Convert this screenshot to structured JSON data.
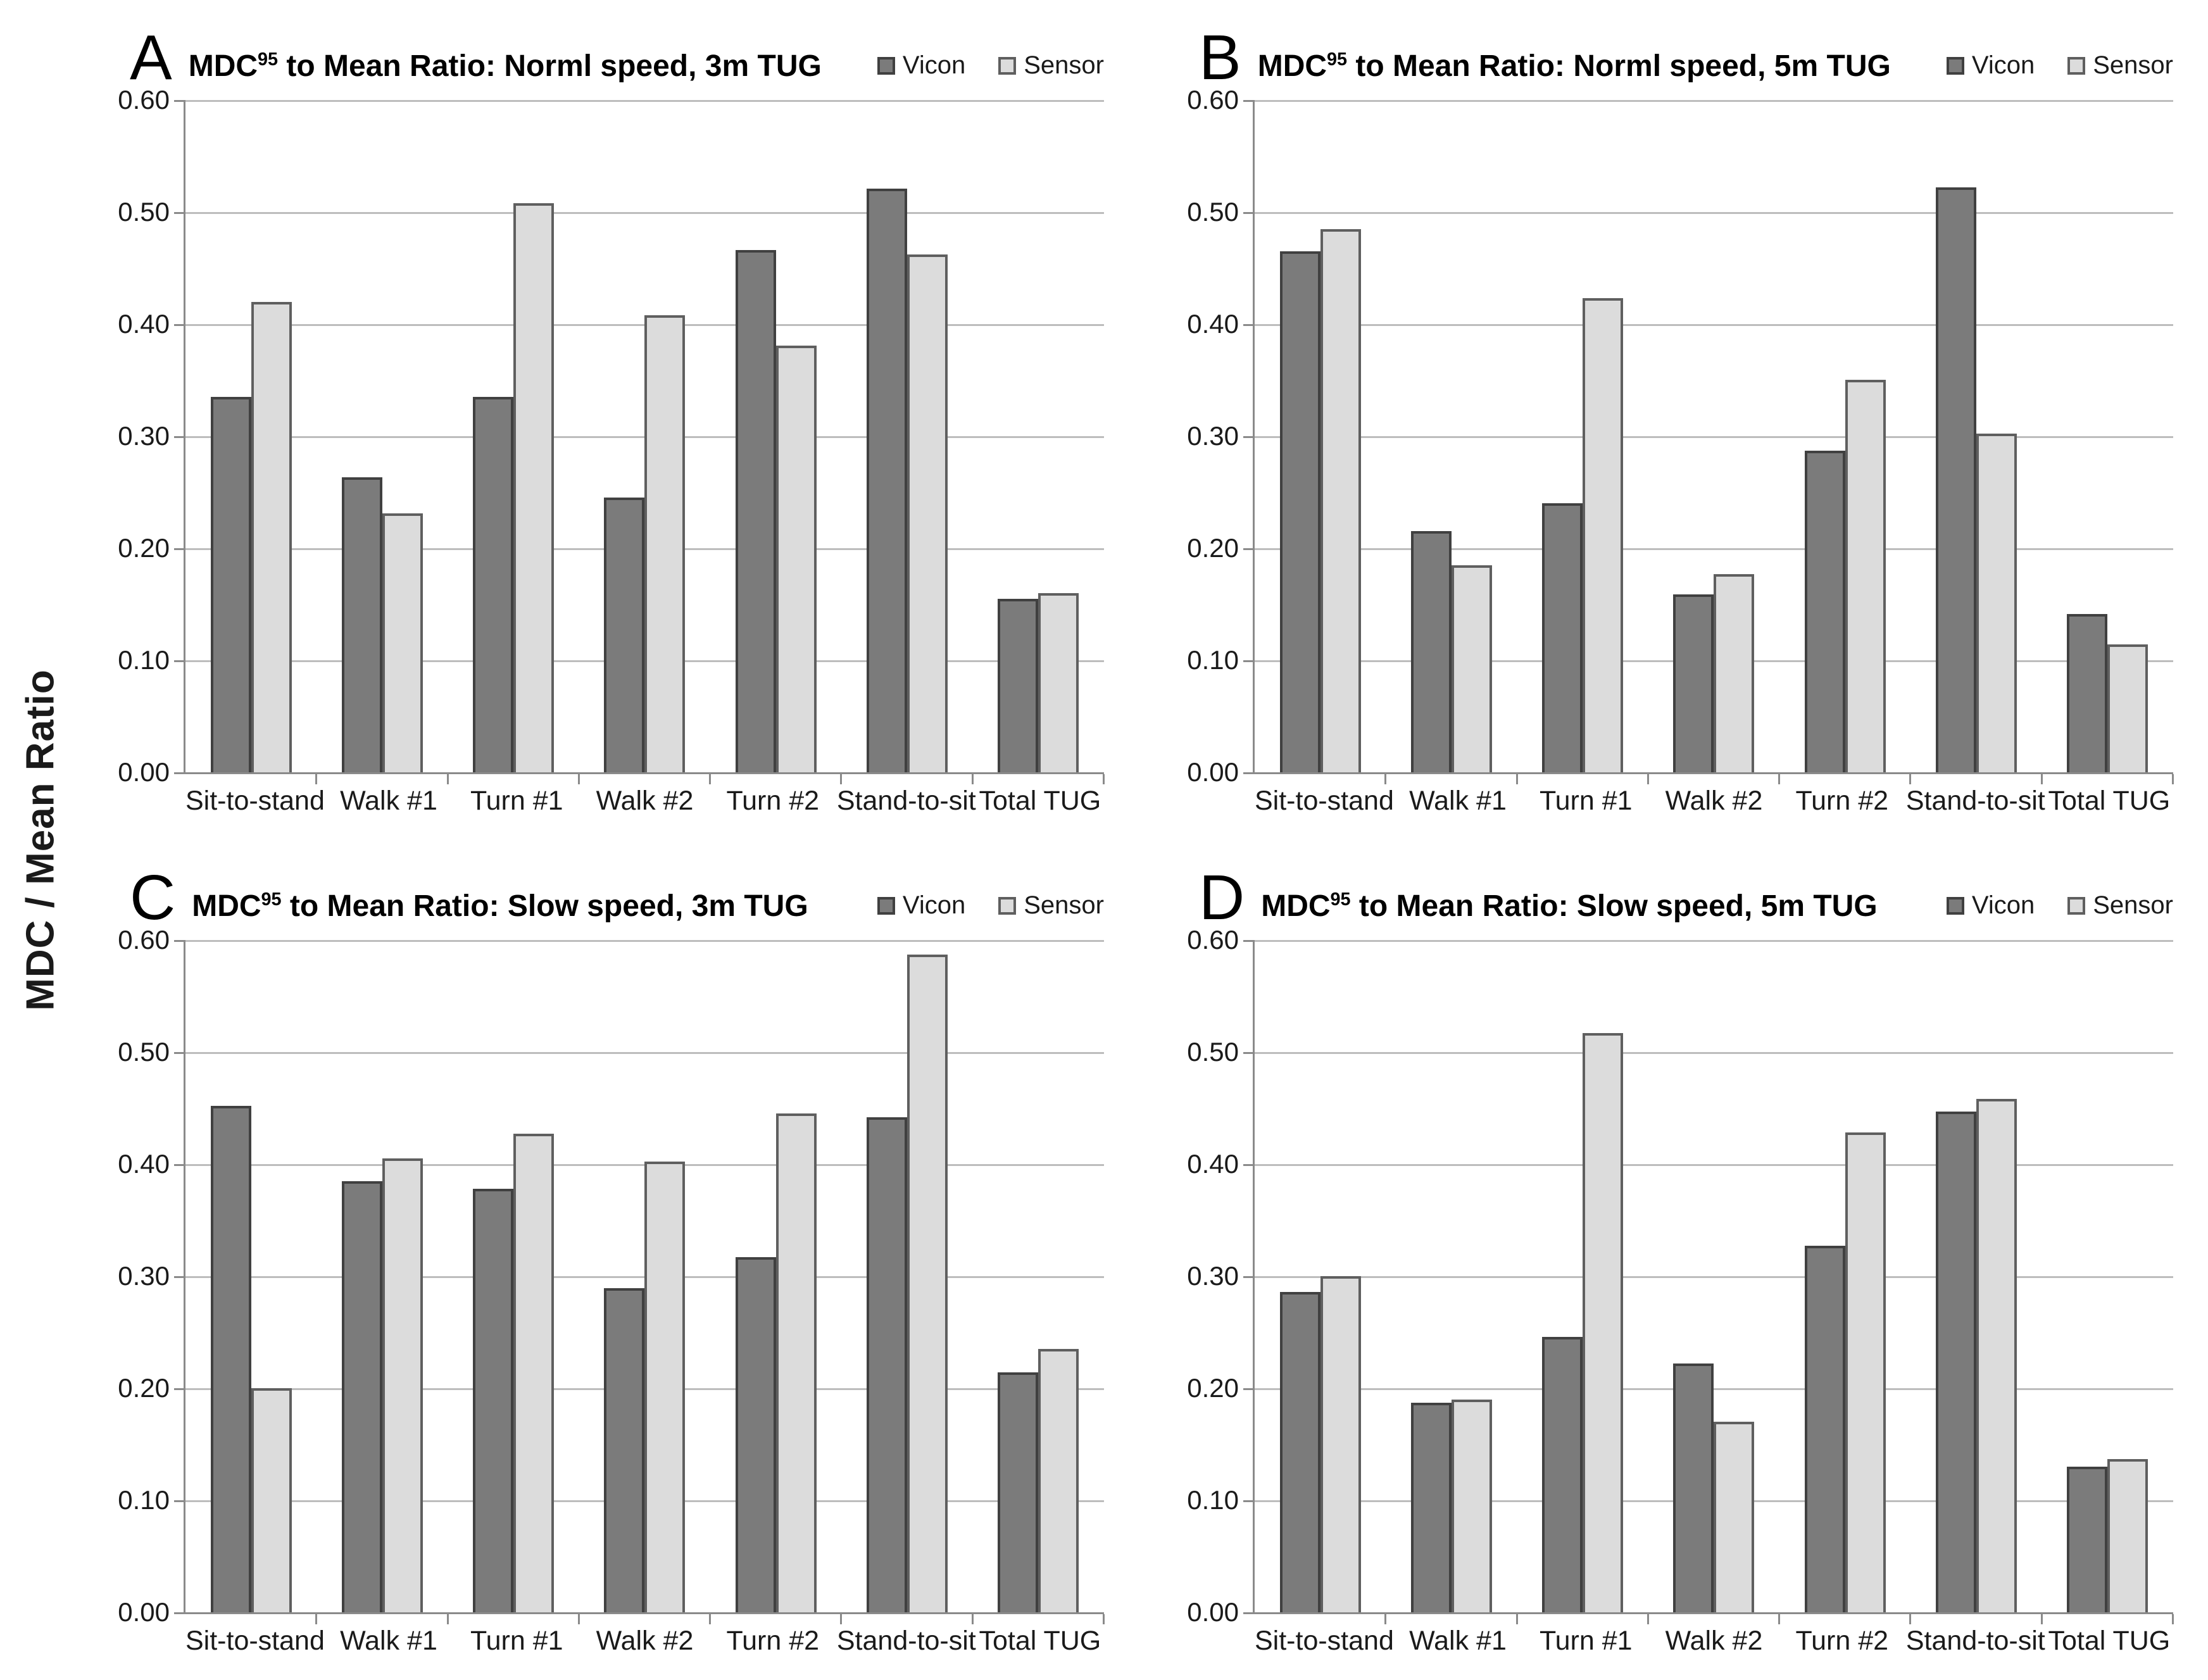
{
  "figure": {
    "ylabel": "MDC / Mean Ratio",
    "yticks": [
      "0.60",
      "0.50",
      "0.40",
      "0.30",
      "0.20",
      "0.10",
      "0.00"
    ],
    "legend": {
      "vicon_label": "Vicon",
      "sensor_label": "Sensor"
    },
    "colors": {
      "vicon_fill": "#7b7b7b",
      "vicon_border": "#404040",
      "sensor_fill": "#dcdcdc",
      "sensor_border": "#5f5f5f",
      "gridline": "#bdbdbd",
      "axis": "#8a8a8a"
    }
  },
  "chart_data": [
    {
      "type": "bar",
      "panel_label": "A",
      "title_base": "MDC",
      "title_sup": "95",
      "title_rest": " to Mean Ratio: Norml speed, 3m TUG",
      "title_full": "MDC95 to Mean Ratio: Norml speed, 3m TUG",
      "categories": [
        "Sit-to-stand",
        "Walk #1",
        "Turn #1",
        "Walk #2",
        "Turn #2",
        "Stand-to-sit",
        "Total TUG"
      ],
      "series": [
        {
          "name": "Vicon",
          "values": [
            0.335,
            0.263,
            0.335,
            0.245,
            0.466,
            0.521,
            0.155
          ]
        },
        {
          "name": "Sensor",
          "values": [
            0.42,
            0.231,
            0.508,
            0.408,
            0.381,
            0.462,
            0.16
          ]
        }
      ],
      "ylim": [
        0,
        0.6
      ],
      "ytick_step": 0.1,
      "grid": true,
      "legend_position": "top-right"
    },
    {
      "type": "bar",
      "panel_label": "B",
      "title_base": "MDC",
      "title_sup": "95",
      "title_rest": " to Mean Ratio: Norml speed, 5m TUG",
      "title_full": "MDC95 to Mean Ratio: Norml speed, 5m TUG",
      "categories": [
        "Sit-to-stand",
        "Walk #1",
        "Turn #1",
        "Walk #2",
        "Turn #2",
        "Stand-to-sit",
        "Total TUG"
      ],
      "series": [
        {
          "name": "Vicon",
          "values": [
            0.465,
            0.215,
            0.24,
            0.159,
            0.287,
            0.522,
            0.141
          ]
        },
        {
          "name": "Sensor",
          "values": [
            0.485,
            0.185,
            0.423,
            0.177,
            0.35,
            0.302,
            0.114
          ]
        }
      ],
      "ylim": [
        0,
        0.6
      ],
      "ytick_step": 0.1,
      "grid": true,
      "legend_position": "top-right"
    },
    {
      "type": "bar",
      "panel_label": "C",
      "title_base": "MDC",
      "title_sup": "95",
      "title_rest": " to Mean Ratio: Slow speed, 3m TUG",
      "title_full": "MDC95 to Mean Ratio: Slow speed, 3m TUG",
      "categories": [
        "Sit-to-stand",
        "Walk #1",
        "Turn #1",
        "Walk #2",
        "Turn #2",
        "Stand-to-sit",
        "Total TUG"
      ],
      "series": [
        {
          "name": "Vicon",
          "values": [
            0.452,
            0.385,
            0.378,
            0.289,
            0.317,
            0.442,
            0.214
          ]
        },
        {
          "name": "Sensor",
          "values": [
            0.2,
            0.405,
            0.427,
            0.402,
            0.445,
            0.587,
            0.235
          ]
        }
      ],
      "ylim": [
        0,
        0.6
      ],
      "ytick_step": 0.1,
      "grid": true,
      "legend_position": "top-right"
    },
    {
      "type": "bar",
      "panel_label": "D",
      "title_base": "MDC",
      "title_sup": "95",
      "title_rest": " to Mean Ratio: Slow speed, 5m TUG",
      "title_full": "MDC95 to Mean Ratio: Slow speed, 5m TUG",
      "categories": [
        "Sit-to-stand",
        "Walk #1",
        "Turn #1",
        "Walk #2",
        "Turn #2",
        "Stand-to-sit",
        "Total TUG"
      ],
      "series": [
        {
          "name": "Vicon",
          "values": [
            0.286,
            0.187,
            0.246,
            0.222,
            0.327,
            0.447,
            0.13
          ]
        },
        {
          "name": "Sensor",
          "values": [
            0.3,
            0.19,
            0.517,
            0.17,
            0.428,
            0.458,
            0.137
          ]
        }
      ],
      "ylim": [
        0,
        0.6
      ],
      "ytick_step": 0.1,
      "grid": true,
      "legend_position": "top-right"
    }
  ]
}
